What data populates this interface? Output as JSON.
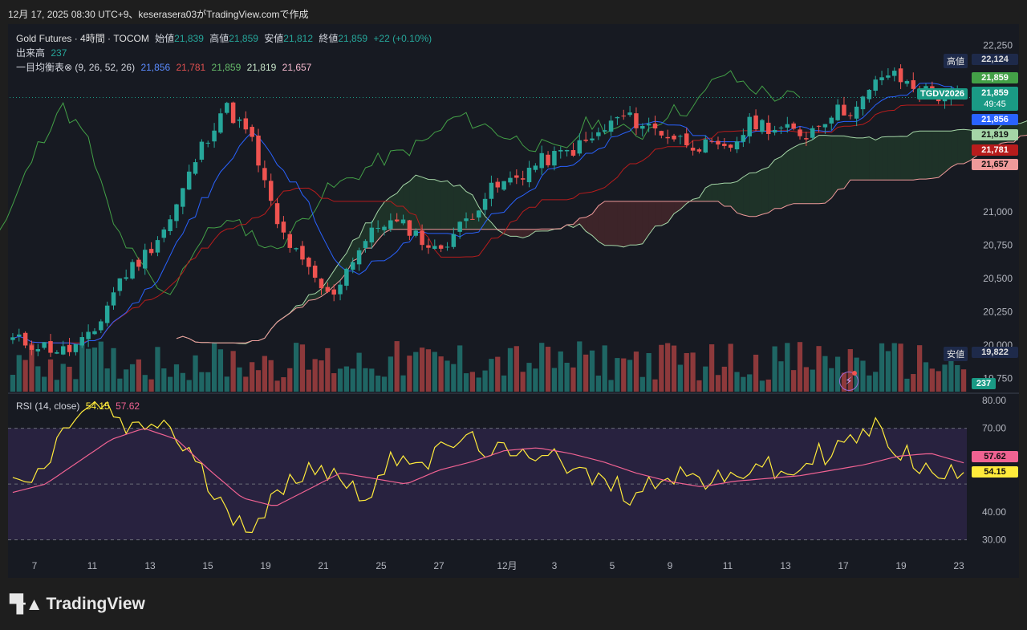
{
  "header": {
    "snapshot_text": "12月 17, 2025 08:30 UTC+9、keserasera03がTradingView.comで作成"
  },
  "legend": {
    "symbol": "Gold Futures · 4時間 · TOCOM",
    "open_label": "始値",
    "open": "21,839",
    "high_label": "高値",
    "high": "21,859",
    "low_label": "安値",
    "low": "21,812",
    "close_label": "終値",
    "close": "21,859",
    "change": "+22 (+0.10%)",
    "volume_label": "出来高",
    "volume": "237",
    "ichimoku_label": "一目均衡表⊗ (9, 26, 52, 26)",
    "ichimoku_values": [
      "21,856",
      "21,781",
      "21,859",
      "21,819",
      "21,657"
    ],
    "rsi_label": "RSI (14, close)",
    "rsi_value": "54.15",
    "rsi_ma": "57.62"
  },
  "price_axis": {
    "ticks": [
      "22,250",
      "21,000",
      "20,750",
      "20,500",
      "20,250",
      "20,000",
      "19,750"
    ],
    "high_label": "高値",
    "high_value": "22,124",
    "low_label": "安値",
    "low_value": "19,822",
    "symbol_tag": "TGDV2026",
    "last_price": "21,859",
    "countdown": "49:45",
    "tags": [
      "21,859",
      "21,856",
      "21,819",
      "21,781",
      "21,657"
    ],
    "volume_tag": "237"
  },
  "rsi_axis": {
    "ticks": [
      "80.00",
      "70.00",
      "40.00",
      "30.00"
    ],
    "tags": [
      "57.62",
      "54.15"
    ]
  },
  "time_axis": {
    "labels": [
      "7",
      "11",
      "13",
      "15",
      "19",
      "21",
      "25",
      "27",
      "12月",
      "3",
      "5",
      "9",
      "11",
      "13",
      "17",
      "19",
      "23"
    ]
  },
  "colors": {
    "up": "#26a69a",
    "down": "#ef5350",
    "tenkan": "#2962ff",
    "kijun": "#b71c1c",
    "chikou": "#43a047",
    "spanA": "#a5d6a7",
    "spanB": "#ef9a9a",
    "rsi": "#ffeb3b",
    "rsi_ma": "#f06292"
  },
  "footer": {
    "brand": "TradingView"
  },
  "chart_data": {
    "type": "candlestick",
    "ylim": [
      19650,
      22350
    ],
    "rsi_ylim": [
      25,
      82
    ],
    "rsi_bands": [
      70,
      50,
      30
    ],
    "seed": 11,
    "close_anchors": [
      20040,
      20000,
      19950,
      20060,
      20480,
      20680,
      20950,
      21430,
      21800,
      21560,
      20900,
      20600,
      20350,
      20700,
      20930,
      20880,
      20700,
      20900,
      21150,
      21250,
      21380,
      21450,
      21550,
      21720,
      21650,
      21560,
      21500,
      21450,
      21680,
      21620,
      21580,
      21750,
      21780,
      22050,
      21950,
      21870,
      21859
    ],
    "rsi_anchors": [
      48,
      54,
      74,
      78,
      68,
      73,
      60,
      42,
      36,
      46,
      58,
      52,
      46,
      62,
      58,
      66,
      63,
      58,
      64,
      54,
      50,
      46,
      55,
      52,
      50,
      58,
      52,
      60,
      64,
      70,
      61,
      52,
      54
    ],
    "rsi_ma_anchors": [
      47,
      50,
      58,
      66,
      70,
      66,
      55,
      45,
      42,
      48,
      54,
      52,
      50,
      55,
      58,
      62,
      63,
      61,
      58,
      54,
      51,
      49,
      51,
      52,
      53,
      55,
      57,
      60,
      61,
      57.62
    ]
  }
}
